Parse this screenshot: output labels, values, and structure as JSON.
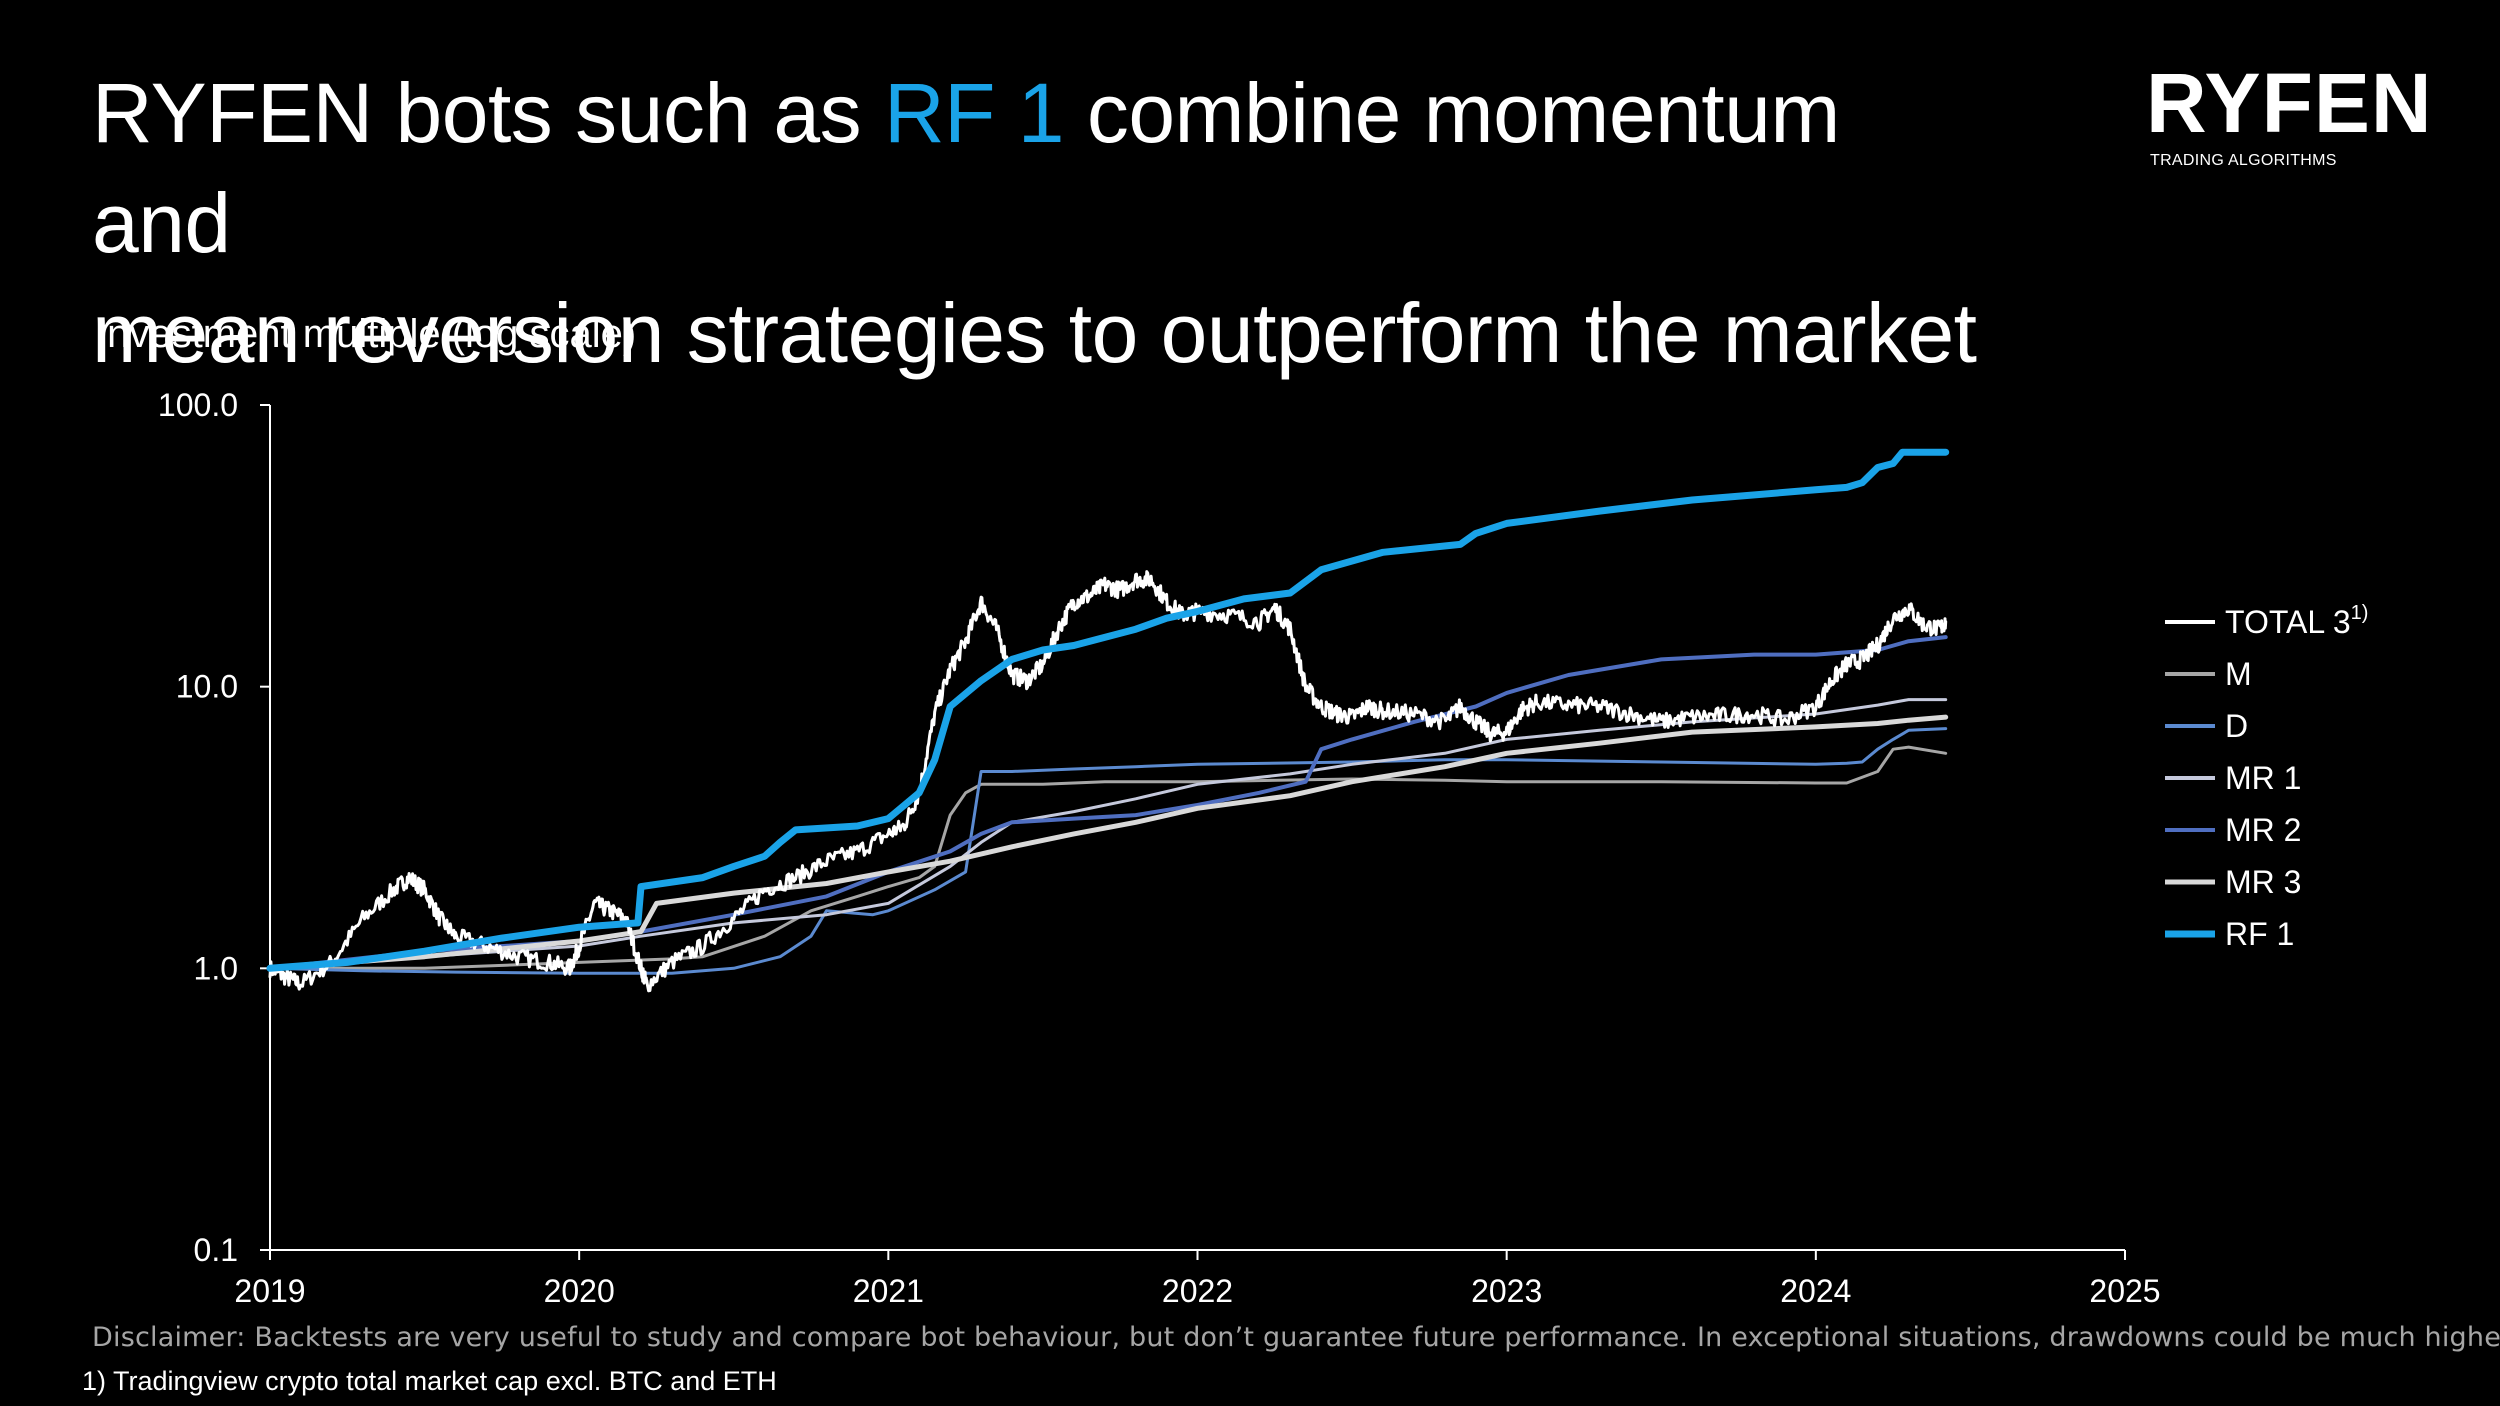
{
  "title": {
    "part1": "RYFEN bots such as ",
    "highlight": "RF 1",
    "part2": " combine momentum and",
    "line2": "mean reversion strategies to outperform the market",
    "highlight_color": "#1aa3e8"
  },
  "logo": {
    "word": "RYFEN",
    "tagline": "TRADING ALGORITHMS"
  },
  "disclaimer": "Disclaimer: Backtests are very useful to study and compare bot behaviour, but don’t guarantee future performance. In exceptional situations, drawdowns could be much higher",
  "footnote": "1) Tradingview crypto total market cap excl. BTC and ETH",
  "chart_data": {
    "type": "line",
    "ylabel": "Investment multiple (log scale)",
    "yscale": "log",
    "ylim": [
      0.1,
      100
    ],
    "yticks": [
      0.1,
      1,
      10,
      100
    ],
    "ytick_labels": [
      "0.1",
      "1.0",
      "10.0",
      "100.0"
    ],
    "xlim": [
      2019,
      2025
    ],
    "xticks": [
      2019,
      2020,
      2021,
      2022,
      2023,
      2024,
      2025
    ],
    "xtick_labels": [
      "2019",
      "2020",
      "2021",
      "2022",
      "2023",
      "2024",
      "2025"
    ],
    "legend_position": "right",
    "series": [
      {
        "name": "TOTAL 3",
        "name_sup": "1)",
        "color": "#ffffff",
        "width": 3,
        "noisy": true,
        "x": [
          2019.0,
          2019.05,
          2019.1,
          2019.2,
          2019.3,
          2019.4,
          2019.45,
          2019.5,
          2019.55,
          2019.6,
          2019.7,
          2019.8,
          2019.9,
          2019.97,
          2020.0,
          2020.05,
          2020.1,
          2020.15,
          2020.2,
          2020.22,
          2020.3,
          2020.4,
          2020.5,
          2020.6,
          2020.7,
          2020.8,
          2020.9,
          2021.0,
          2021.05,
          2021.1,
          2021.15,
          2021.2,
          2021.25,
          2021.3,
          2021.35,
          2021.4,
          2021.45,
          2021.5,
          2021.55,
          2021.6,
          2021.65,
          2021.7,
          2021.75,
          2021.8,
          2021.85,
          2021.9,
          2021.95,
          2022.0,
          2022.1,
          2022.2,
          2022.25,
          2022.3,
          2022.35,
          2022.4,
          2022.45,
          2022.5,
          2022.55,
          2022.6,
          2022.7,
          2022.8,
          2022.85,
          2022.9,
          2022.95,
          2023.0,
          2023.05,
          2023.1,
          2023.2,
          2023.3,
          2023.4,
          2023.5,
          2023.6,
          2023.7,
          2023.8,
          2023.9,
          2024.0,
          2024.05,
          2024.1,
          2024.15,
          2024.2,
          2024.25,
          2024.3,
          2024.35,
          2024.4,
          2024.42
        ],
        "y": [
          1.0,
          0.93,
          0.88,
          1.05,
          1.5,
          1.9,
          2.1,
          1.9,
          1.5,
          1.3,
          1.2,
          1.1,
          1.05,
          1.0,
          1.2,
          1.7,
          1.6,
          1.5,
          1.0,
          0.87,
          1.05,
          1.2,
          1.5,
          1.9,
          2.1,
          2.4,
          2.6,
          3.0,
          3.2,
          4.2,
          8.0,
          11.5,
          14.5,
          20.0,
          16.0,
          11.0,
          10.5,
          12.0,
          16.0,
          20.0,
          21.0,
          23.0,
          22.0,
          24.0,
          24.0,
          20.0,
          18.0,
          18.5,
          18.0,
          17.0,
          19.0,
          16.0,
          10.0,
          8.5,
          8.0,
          7.8,
          8.5,
          8.2,
          8.0,
          7.5,
          8.5,
          7.5,
          6.8,
          6.9,
          8.3,
          8.8,
          8.6,
          8.5,
          8.0,
          7.5,
          7.8,
          7.9,
          8.0,
          7.6,
          8.5,
          10.5,
          12.0,
          12.5,
          14.0,
          17.5,
          19.0,
          16.5,
          16.0,
          17.0
        ]
      },
      {
        "name": "M",
        "color": "#a6a6a6",
        "width": 3,
        "x": [
          2019.0,
          2019.5,
          2020.0,
          2020.3,
          2020.4,
          2020.6,
          2020.75,
          2020.9,
          2021.0,
          2021.1,
          2021.15,
          2021.2,
          2021.25,
          2021.3,
          2021.5,
          2021.7,
          2022.0,
          2022.5,
          2022.8,
          2023.0,
          2023.5,
          2024.0,
          2024.1,
          2024.2,
          2024.25,
          2024.3,
          2024.42
        ],
        "y": [
          1.0,
          1.0,
          1.05,
          1.08,
          1.1,
          1.3,
          1.6,
          1.8,
          1.95,
          2.1,
          2.3,
          3.5,
          4.2,
          4.5,
          4.5,
          4.6,
          4.6,
          4.7,
          4.65,
          4.6,
          4.6,
          4.55,
          4.55,
          5.0,
          6.0,
          6.1,
          5.8
        ]
      },
      {
        "name": "D",
        "color": "#5b8ad0",
        "width": 3,
        "x": [
          2019.0,
          2019.3,
          2019.6,
          2020.0,
          2020.3,
          2020.5,
          2020.65,
          2020.75,
          2020.8,
          2020.95,
          2021.0,
          2021.15,
          2021.25,
          2021.3,
          2021.4,
          2021.6,
          2021.8,
          2022.0,
          2022.5,
          2022.8,
          2023.0,
          2023.5,
          2024.0,
          2024.1,
          2024.15,
          2024.2,
          2024.25,
          2024.3,
          2024.42
        ],
        "y": [
          1.0,
          0.98,
          0.97,
          0.96,
          0.96,
          1.0,
          1.1,
          1.3,
          1.6,
          1.55,
          1.6,
          1.9,
          2.2,
          5.0,
          5.0,
          5.1,
          5.2,
          5.3,
          5.4,
          5.5,
          5.5,
          5.4,
          5.3,
          5.35,
          5.4,
          6.0,
          6.5,
          7.0,
          7.1
        ]
      },
      {
        "name": "MR 1",
        "color": "#c5c9dc",
        "width": 3,
        "x": [
          2019.0,
          2019.5,
          2020.0,
          2020.2,
          2020.5,
          2020.8,
          2021.0,
          2021.2,
          2021.3,
          2021.4,
          2021.6,
          2021.8,
          2022.0,
          2022.3,
          2022.5,
          2022.8,
          2023.0,
          2023.3,
          2023.6,
          2024.0,
          2024.2,
          2024.3,
          2024.42
        ],
        "y": [
          1.0,
          1.1,
          1.2,
          1.3,
          1.45,
          1.55,
          1.7,
          2.3,
          2.8,
          3.3,
          3.6,
          4.0,
          4.5,
          4.9,
          5.3,
          5.8,
          6.5,
          7.0,
          7.5,
          8.0,
          8.6,
          9.0,
          9.0
        ]
      },
      {
        "name": "MR 2",
        "color": "#4f6ec0",
        "width": 4,
        "x": [
          2019.0,
          2019.5,
          2020.0,
          2020.2,
          2020.5,
          2020.8,
          2021.0,
          2021.2,
          2021.3,
          2021.4,
          2021.6,
          2021.8,
          2022.0,
          2022.2,
          2022.35,
          2022.4,
          2022.5,
          2022.7,
          2022.9,
          2023.0,
          2023.2,
          2023.5,
          2023.8,
          2024.0,
          2024.2,
          2024.3,
          2024.42
        ],
        "y": [
          1.0,
          1.15,
          1.25,
          1.35,
          1.55,
          1.8,
          2.2,
          2.6,
          3.0,
          3.3,
          3.4,
          3.5,
          3.8,
          4.2,
          4.6,
          6.0,
          6.5,
          7.5,
          8.5,
          9.5,
          11.0,
          12.5,
          13.0,
          13.0,
          13.5,
          14.5,
          15.0
        ]
      },
      {
        "name": "MR 3",
        "color": "#d9d9d9",
        "width": 5,
        "x": [
          2019.0,
          2019.5,
          2020.0,
          2020.2,
          2020.25,
          2020.5,
          2020.8,
          2021.0,
          2021.2,
          2021.4,
          2021.6,
          2021.8,
          2022.0,
          2022.3,
          2022.5,
          2022.8,
          2023.0,
          2023.3,
          2023.6,
          2024.0,
          2024.2,
          2024.3,
          2024.42
        ],
        "y": [
          1.0,
          1.1,
          1.25,
          1.35,
          1.7,
          1.85,
          2.0,
          2.2,
          2.4,
          2.7,
          3.0,
          3.3,
          3.7,
          4.1,
          4.6,
          5.2,
          5.8,
          6.3,
          6.9,
          7.2,
          7.4,
          7.6,
          7.8
        ]
      },
      {
        "name": "RF 1",
        "color": "#1aa3e8",
        "width": 7,
        "x": [
          2019.0,
          2019.25,
          2019.5,
          2019.75,
          2020.0,
          2020.19,
          2020.2,
          2020.4,
          2020.5,
          2020.6,
          2020.65,
          2020.7,
          2020.9,
          2021.0,
          2021.1,
          2021.15,
          2021.2,
          2021.3,
          2021.4,
          2021.5,
          2021.6,
          2021.8,
          2021.9,
          2022.0,
          2022.15,
          2022.3,
          2022.4,
          2022.6,
          2022.85,
          2022.9,
          2023.0,
          2023.3,
          2023.6,
          2024.0,
          2024.1,
          2024.15,
          2024.2,
          2024.25,
          2024.28,
          2024.3,
          2024.42
        ],
        "y": [
          1.0,
          1.05,
          1.15,
          1.28,
          1.4,
          1.45,
          1.95,
          2.1,
          2.3,
          2.5,
          2.8,
          3.1,
          3.2,
          3.4,
          4.2,
          5.5,
          8.5,
          10.5,
          12.5,
          13.5,
          14.0,
          16.0,
          17.5,
          18.5,
          20.5,
          21.5,
          26.0,
          30.0,
          32.0,
          35.0,
          38.0,
          42.0,
          46.0,
          50.0,
          51.0,
          53.0,
          60.0,
          62.0,
          68.0,
          68.0,
          68.0
        ]
      }
    ]
  }
}
